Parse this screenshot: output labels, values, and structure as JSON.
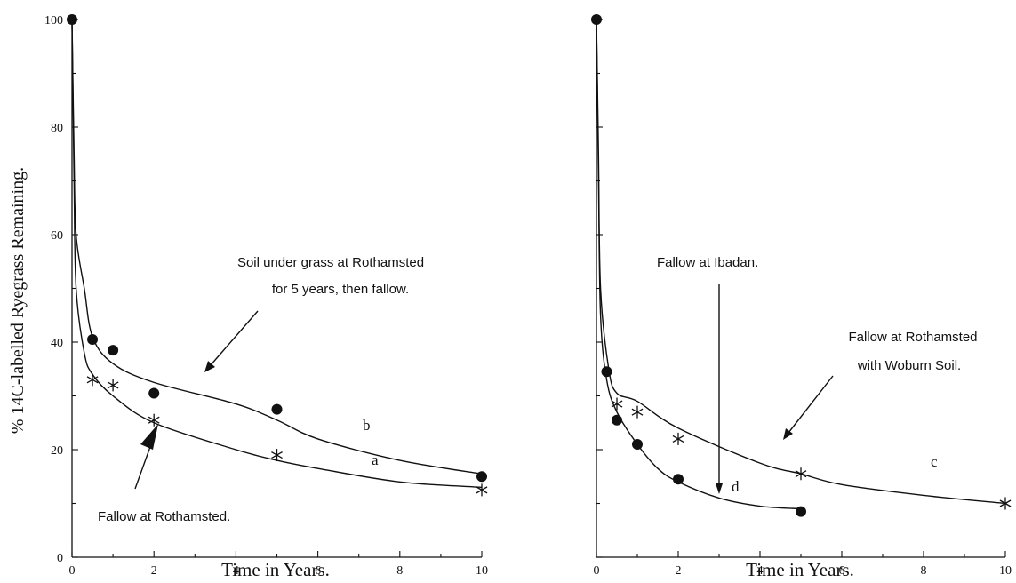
{
  "chart_data": [
    {
      "type": "scatter",
      "ylabel": "% 14C-labelled Ryegrass Remaining.",
      "xlabel": "Time in Years.",
      "xlim": [
        0,
        10
      ],
      "ylim": [
        0,
        100
      ],
      "xticks": [
        "0",
        "2",
        "4",
        "6",
        "8",
        "10"
      ],
      "yticks": [
        "0",
        "20",
        "40",
        "60",
        "80",
        "100"
      ],
      "series": [
        {
          "name": "b",
          "marker": "circle",
          "points": [
            [
              0,
              100
            ],
            [
              0.5,
              40.5
            ],
            [
              1,
              38.5
            ],
            [
              2,
              30.5
            ],
            [
              5,
              27.5
            ],
            [
              10,
              15
            ]
          ],
          "curve": [
            [
              0,
              100
            ],
            [
              0.05,
              75
            ],
            [
              0.1,
              60
            ],
            [
              0.3,
              50
            ],
            [
              0.5,
              41
            ],
            [
              1,
              36
            ],
            [
              2,
              32.5
            ],
            [
              4,
              28.5
            ],
            [
              5,
              25.5
            ],
            [
              6,
              22
            ],
            [
              8,
              18
            ],
            [
              10,
              15.5
            ]
          ]
        },
        {
          "name": "a",
          "marker": "star",
          "points": [
            [
              0.5,
              33
            ],
            [
              1,
              32
            ],
            [
              2,
              25.5
            ],
            [
              5,
              19
            ],
            [
              10,
              12.5
            ]
          ],
          "curve": [
            [
              0,
              100
            ],
            [
              0.05,
              70
            ],
            [
              0.1,
              50
            ],
            [
              0.3,
              38
            ],
            [
              0.5,
              34
            ],
            [
              1,
              30
            ],
            [
              2,
              25
            ],
            [
              4,
              20
            ],
            [
              5,
              18
            ],
            [
              6,
              16.5
            ],
            [
              8,
              14
            ],
            [
              10,
              13
            ]
          ]
        }
      ],
      "annotations": {
        "grass_line1": "Soil under grass at Rothamsted",
        "grass_line2": "for 5 years, then fallow.",
        "fallow": "Fallow at Rothamsted.",
        "label_a": "a",
        "label_b": "b"
      }
    },
    {
      "type": "scatter",
      "xlabel": "Time in Years.",
      "xlim": [
        0,
        10
      ],
      "ylim": [
        0,
        100
      ],
      "xticks": [
        "0",
        "2",
        "4",
        "6",
        "8",
        "10"
      ],
      "series": [
        {
          "name": "c",
          "marker": "star",
          "points": [
            [
              0.5,
              28.5
            ],
            [
              1,
              27
            ],
            [
              2,
              22
            ],
            [
              5,
              15.5
            ],
            [
              10,
              10
            ]
          ],
          "curve": [
            [
              0,
              100
            ],
            [
              0.05,
              75
            ],
            [
              0.1,
              50
            ],
            [
              0.3,
              35
            ],
            [
              0.5,
              30.5
            ],
            [
              1,
              29
            ],
            [
              2,
              24
            ],
            [
              4,
              17.5
            ],
            [
              5,
              15.5
            ],
            [
              6,
              13.5
            ],
            [
              8,
              11.5
            ],
            [
              10,
              10
            ]
          ]
        },
        {
          "name": "d",
          "marker": "circle",
          "points": [
            [
              0,
              100
            ],
            [
              0.25,
              34.5
            ],
            [
              0.5,
              25.5
            ],
            [
              1,
              21
            ],
            [
              2,
              14.5
            ],
            [
              5,
              8.5
            ]
          ],
          "curve": [
            [
              0,
              100
            ],
            [
              0.05,
              70
            ],
            [
              0.1,
              45
            ],
            [
              0.25,
              33
            ],
            [
              0.5,
              27
            ],
            [
              1,
              21
            ],
            [
              1.5,
              16.5
            ],
            [
              2,
              14
            ],
            [
              3,
              11
            ],
            [
              4,
              9.5
            ],
            [
              5,
              9
            ]
          ]
        }
      ],
      "annotations": {
        "ibadan": "Fallow at Ibadan.",
        "woburn_line1": "Fallow at Rothamsted",
        "woburn_line2": "with Woburn Soil.",
        "label_c": "c",
        "label_d": "d"
      }
    }
  ]
}
